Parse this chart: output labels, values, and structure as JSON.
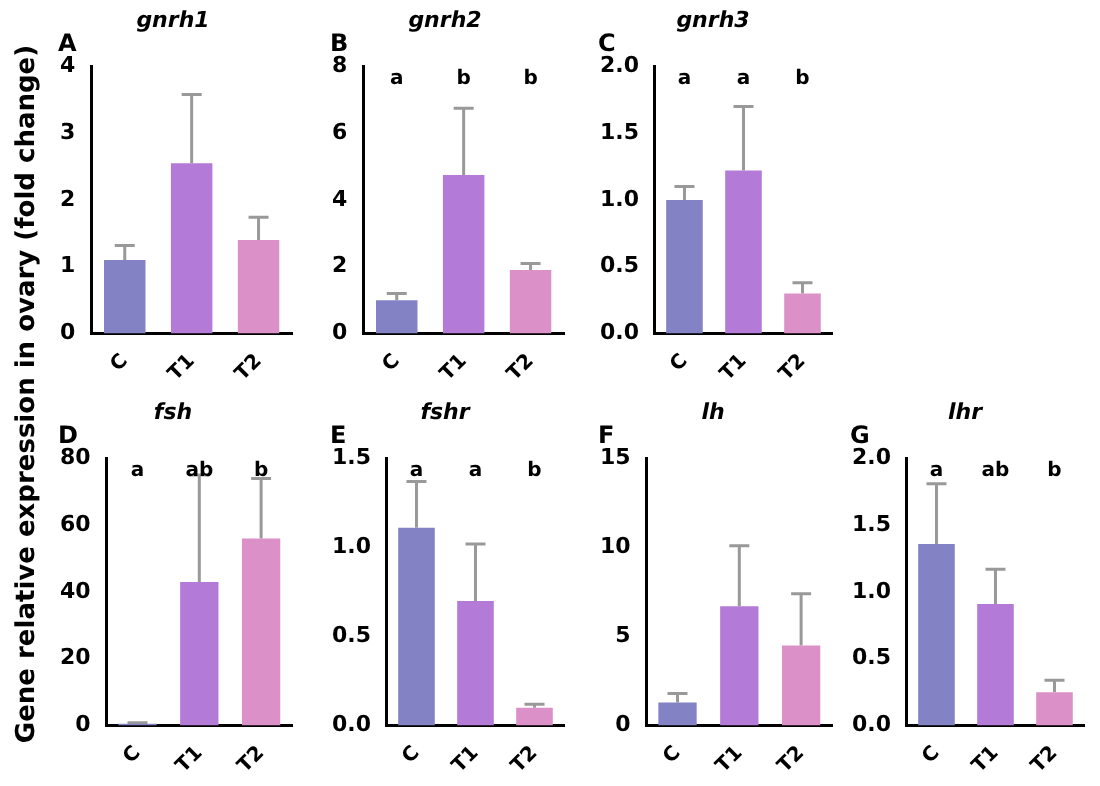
{
  "chart_data": [
    {
      "type": "bar",
      "title": "gnrh1",
      "ylabel": "Gene relative expression in ovary (fold change)",
      "categories": [
        "C",
        "T1",
        "T2"
      ],
      "values": [
        1.1,
        2.55,
        1.4
      ],
      "colors": [
        "#8282c4",
        "#b47ad8",
        "#dc90c8"
      ],
      "errors": [
        [
          1.1,
          1.32
        ],
        [
          2.55,
          3.58
        ],
        [
          1.4,
          1.74
        ]
      ],
      "ylim": [
        0,
        4
      ],
      "yticks": [
        0,
        1,
        2,
        3,
        4
      ],
      "grid": false,
      "legend": false,
      "annotations": [
        "A"
      ]
    },
    {
      "type": "bar",
      "title": "gnrh2",
      "categories": [
        "C",
        "T1",
        "T2"
      ],
      "values": [
        1.0,
        4.75,
        1.9
      ],
      "colors": [
        "#8282c4",
        "#b47ad8",
        "#dc90c8"
      ],
      "errors": [
        [
          1.0,
          1.2
        ],
        [
          4.75,
          6.75
        ],
        [
          1.9,
          2.1
        ]
      ],
      "ylim": [
        0,
        8
      ],
      "yticks": [
        0,
        2,
        4,
        6,
        8
      ],
      "grid": false,
      "legend": false,
      "annotations": [
        "B",
        "a",
        "b",
        "b"
      ]
    },
    {
      "type": "bar",
      "title": "gnrh3",
      "categories": [
        "C",
        "T1",
        "T2"
      ],
      "values": [
        1.0,
        1.22,
        0.3
      ],
      "colors": [
        "#8282c4",
        "#b47ad8",
        "#dc90c8"
      ],
      "errors": [
        [
          1.0,
          1.1
        ],
        [
          1.22,
          1.7
        ],
        [
          0.3,
          0.38
        ]
      ],
      "ylim": [
        0,
        2
      ],
      "yticks": [
        {
          "value": 0,
          "label": "0.0"
        },
        {
          "value": 0.5,
          "label": "0.5"
        },
        {
          "value": 1,
          "label": "1.0"
        },
        {
          "value": 1.5,
          "label": "1.5"
        },
        {
          "value": 2,
          "label": "2.0"
        }
      ],
      "grid": false,
      "legend": false,
      "annotations": [
        "C",
        "a",
        "a",
        "b"
      ]
    },
    {
      "type": "bar",
      "title": "fsh",
      "categories": [
        "C",
        "T1",
        "T2"
      ],
      "values": [
        0.5,
        43,
        56
      ],
      "colors": [
        "#8282c4",
        "#b47ad8",
        "#dc90c8"
      ],
      "errors": [
        [
          0.5,
          0.8
        ],
        [
          43,
          75
        ],
        [
          56,
          74
        ]
      ],
      "ylim": [
        0,
        80
      ],
      "yticks": [
        0,
        20,
        40,
        60,
        80
      ],
      "grid": false,
      "legend": false,
      "annotations": [
        "D",
        "a",
        "ab",
        "b"
      ]
    },
    {
      "type": "bar",
      "title": "fshr",
      "categories": [
        "C",
        "T1",
        "T2"
      ],
      "values": [
        1.11,
        0.7,
        0.1
      ],
      "colors": [
        "#8282c4",
        "#b47ad8",
        "#dc90c8"
      ],
      "errors": [
        [
          1.11,
          1.37
        ],
        [
          0.7,
          1.02
        ],
        [
          0.1,
          0.12
        ]
      ],
      "ylim": [
        0,
        1.5
      ],
      "yticks": [
        {
          "value": 0,
          "label": "0.0"
        },
        {
          "value": 0.5,
          "label": "0.5"
        },
        {
          "value": 1,
          "label": "1.0"
        },
        {
          "value": 1.5,
          "label": "1.5"
        }
      ],
      "grid": false,
      "legend": false,
      "annotations": [
        "E",
        "a",
        "a",
        "b"
      ]
    },
    {
      "type": "bar",
      "title": "lh",
      "categories": [
        "C",
        "T1",
        "T2"
      ],
      "values": [
        1.3,
        6.7,
        4.5
      ],
      "colors": [
        "#8282c4",
        "#b47ad8",
        "#dc90c8"
      ],
      "errors": [
        [
          1.3,
          1.8
        ],
        [
          6.7,
          10.1
        ],
        [
          4.5,
          7.4
        ]
      ],
      "ylim": [
        0,
        15
      ],
      "yticks": [
        0,
        5,
        10,
        15
      ],
      "grid": false,
      "legend": false,
      "annotations": [
        "F"
      ]
    },
    {
      "type": "bar",
      "title": "lhr",
      "categories": [
        "C",
        "T1",
        "T2"
      ],
      "values": [
        1.36,
        0.91,
        0.25
      ],
      "colors": [
        "#8282c4",
        "#b47ad8",
        "#dc90c8"
      ],
      "errors": [
        [
          1.36,
          1.81
        ],
        [
          0.91,
          1.17
        ],
        [
          0.25,
          0.34
        ]
      ],
      "ylim": [
        0,
        2
      ],
      "yticks": [
        {
          "value": 0,
          "label": "0.0"
        },
        {
          "value": 0.5,
          "label": "0.5"
        },
        {
          "value": 1,
          "label": "1.0"
        },
        {
          "value": 1.5,
          "label": "1.5"
        },
        {
          "value": 2,
          "label": "2.0"
        }
      ],
      "grid": false,
      "legend": false,
      "annotations": [
        "G",
        "a",
        "ab",
        "b"
      ]
    }
  ]
}
